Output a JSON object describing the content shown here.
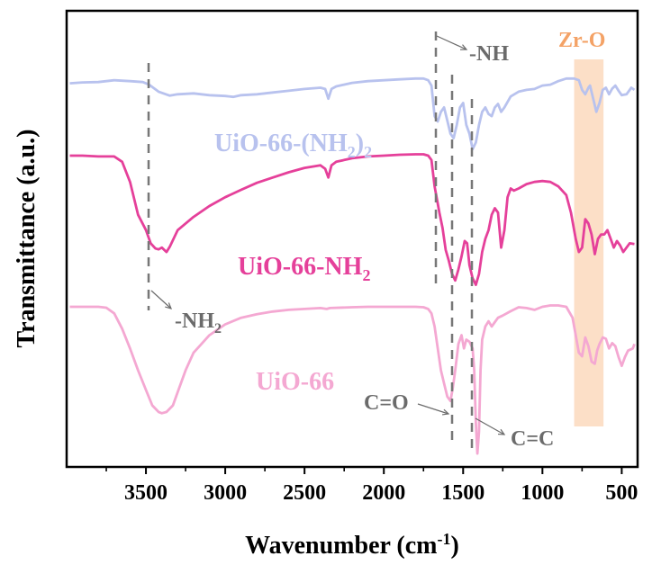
{
  "chart_data": {
    "type": "line",
    "title": "",
    "xlabel": "Wavenumber (cm",
    "xlabel_sup": "-1",
    "xlabel_close": ")",
    "ylabel": "Transmittance (a.u.)",
    "xlim": [
      4000,
      400
    ],
    "x_reversed": true,
    "ylim": [
      0,
      1
    ],
    "ticks": [
      3500,
      3000,
      2500,
      2000,
      1500,
      1000,
      500
    ],
    "tick_labels": [
      "3500",
      "3000",
      "2500",
      "2000",
      "1500",
      "1000",
      "500"
    ],
    "series": [
      {
        "name": "UiO-66-(NH2)2",
        "label_main": "UiO-66-(NH",
        "label_sub": "2",
        "label_close": ")",
        "label_sub2": "2",
        "color": "#b8c2ee",
        "points": [
          [
            3980,
            0.855
          ],
          [
            3900,
            0.857
          ],
          [
            3800,
            0.858
          ],
          [
            3700,
            0.862
          ],
          [
            3600,
            0.86
          ],
          [
            3520,
            0.858
          ],
          [
            3480,
            0.852
          ],
          [
            3420,
            0.836
          ],
          [
            3350,
            0.827
          ],
          [
            3300,
            0.83
          ],
          [
            3200,
            0.832
          ],
          [
            3100,
            0.828
          ],
          [
            3000,
            0.826
          ],
          [
            2950,
            0.824
          ],
          [
            2900,
            0.828
          ],
          [
            2800,
            0.83
          ],
          [
            2700,
            0.834
          ],
          [
            2600,
            0.838
          ],
          [
            2500,
            0.842
          ],
          [
            2400,
            0.845
          ],
          [
            2370,
            0.842
          ],
          [
            2350,
            0.82
          ],
          [
            2330,
            0.842
          ],
          [
            2300,
            0.848
          ],
          [
            2200,
            0.856
          ],
          [
            2100,
            0.86
          ],
          [
            2000,
            0.862
          ],
          [
            1900,
            0.864
          ],
          [
            1800,
            0.866
          ],
          [
            1750,
            0.866
          ],
          [
            1720,
            0.862
          ],
          [
            1700,
            0.85
          ],
          [
            1680,
            0.78
          ],
          [
            1660,
            0.768
          ],
          [
            1640,
            0.79
          ],
          [
            1620,
            0.8
          ],
          [
            1600,
            0.77
          ],
          [
            1580,
            0.74
          ],
          [
            1560,
            0.73
          ],
          [
            1540,
            0.76
          ],
          [
            1520,
            0.8
          ],
          [
            1500,
            0.81
          ],
          [
            1480,
            0.76
          ],
          [
            1460,
            0.74
          ],
          [
            1440,
            0.705
          ],
          [
            1420,
            0.72
          ],
          [
            1400,
            0.76
          ],
          [
            1380,
            0.79
          ],
          [
            1360,
            0.8
          ],
          [
            1340,
            0.785
          ],
          [
            1320,
            0.78
          ],
          [
            1300,
            0.8
          ],
          [
            1280,
            0.808
          ],
          [
            1260,
            0.79
          ],
          [
            1240,
            0.8
          ],
          [
            1200,
            0.825
          ],
          [
            1150,
            0.836
          ],
          [
            1100,
            0.84
          ],
          [
            1050,
            0.842
          ],
          [
            1000,
            0.85
          ],
          [
            950,
            0.852
          ],
          [
            900,
            0.86
          ],
          [
            850,
            0.866
          ],
          [
            800,
            0.866
          ],
          [
            770,
            0.862
          ],
          [
            750,
            0.84
          ],
          [
            730,
            0.83
          ],
          [
            710,
            0.845
          ],
          [
            700,
            0.85
          ],
          [
            680,
            0.82
          ],
          [
            660,
            0.79
          ],
          [
            640,
            0.81
          ],
          [
            620,
            0.84
          ],
          [
            600,
            0.845
          ],
          [
            580,
            0.83
          ],
          [
            560,
            0.843
          ],
          [
            540,
            0.85
          ],
          [
            520,
            0.838
          ],
          [
            500,
            0.828
          ],
          [
            470,
            0.83
          ],
          [
            440,
            0.845
          ],
          [
            420,
            0.84
          ]
        ]
      },
      {
        "name": "UiO-66-NH2",
        "label_main": "UiO-66-NH",
        "label_sub": "2",
        "label_close": "",
        "label_sub2": "",
        "color": "#e5409a",
        "points": [
          [
            3980,
            0.69
          ],
          [
            3900,
            0.69
          ],
          [
            3800,
            0.688
          ],
          [
            3700,
            0.688
          ],
          [
            3650,
            0.676
          ],
          [
            3600,
            0.63
          ],
          [
            3550,
            0.555
          ],
          [
            3500,
            0.52
          ],
          [
            3470,
            0.49
          ],
          [
            3440,
            0.478
          ],
          [
            3420,
            0.476
          ],
          [
            3400,
            0.48
          ],
          [
            3370,
            0.47
          ],
          [
            3350,
            0.482
          ],
          [
            3300,
            0.52
          ],
          [
            3200,
            0.55
          ],
          [
            3100,
            0.575
          ],
          [
            3000,
            0.595
          ],
          [
            2900,
            0.612
          ],
          [
            2800,
            0.628
          ],
          [
            2700,
            0.64
          ],
          [
            2600,
            0.652
          ],
          [
            2500,
            0.662
          ],
          [
            2400,
            0.668
          ],
          [
            2370,
            0.66
          ],
          [
            2350,
            0.64
          ],
          [
            2330,
            0.668
          ],
          [
            2300,
            0.676
          ],
          [
            2200,
            0.684
          ],
          [
            2100,
            0.688
          ],
          [
            2000,
            0.69
          ],
          [
            1900,
            0.692
          ],
          [
            1800,
            0.693
          ],
          [
            1750,
            0.693
          ],
          [
            1720,
            0.69
          ],
          [
            1700,
            0.68
          ],
          [
            1680,
            0.62
          ],
          [
            1650,
            0.56
          ],
          [
            1630,
            0.525
          ],
          [
            1610,
            0.475
          ],
          [
            1590,
            0.45
          ],
          [
            1570,
            0.42
          ],
          [
            1550,
            0.405
          ],
          [
            1530,
            0.43
          ],
          [
            1510,
            0.46
          ],
          [
            1490,
            0.495
          ],
          [
            1475,
            0.49
          ],
          [
            1460,
            0.44
          ],
          [
            1440,
            0.41
          ],
          [
            1420,
            0.395
          ],
          [
            1400,
            0.42
          ],
          [
            1380,
            0.47
          ],
          [
            1360,
            0.5
          ],
          [
            1340,
            0.52
          ],
          [
            1320,
            0.555
          ],
          [
            1300,
            0.57
          ],
          [
            1280,
            0.56
          ],
          [
            1260,
            0.48
          ],
          [
            1240,
            0.52
          ],
          [
            1220,
            0.595
          ],
          [
            1200,
            0.615
          ],
          [
            1180,
            0.61
          ],
          [
            1150,
            0.615
          ],
          [
            1100,
            0.625
          ],
          [
            1050,
            0.63
          ],
          [
            1000,
            0.632
          ],
          [
            950,
            0.63
          ],
          [
            900,
            0.62
          ],
          [
            850,
            0.6
          ],
          [
            820,
            0.56
          ],
          [
            790,
            0.5
          ],
          [
            770,
            0.47
          ],
          [
            750,
            0.48
          ],
          [
            730,
            0.545
          ],
          [
            710,
            0.535
          ],
          [
            690,
            0.51
          ],
          [
            670,
            0.465
          ],
          [
            650,
            0.5
          ],
          [
            630,
            0.51
          ],
          [
            610,
            0.51
          ],
          [
            590,
            0.52
          ],
          [
            570,
            0.5
          ],
          [
            550,
            0.48
          ],
          [
            530,
            0.495
          ],
          [
            510,
            0.485
          ],
          [
            490,
            0.47
          ],
          [
            470,
            0.48
          ],
          [
            450,
            0.49
          ],
          [
            420,
            0.488
          ]
        ]
      },
      {
        "name": "UiO-66",
        "label_main": "UiO-66",
        "label_sub": "",
        "label_close": "",
        "label_sub2": "",
        "color": "#f4a8d2",
        "points": [
          [
            3980,
            0.345
          ],
          [
            3900,
            0.345
          ],
          [
            3800,
            0.345
          ],
          [
            3750,
            0.343
          ],
          [
            3700,
            0.33
          ],
          [
            3650,
            0.295
          ],
          [
            3600,
            0.25
          ],
          [
            3550,
            0.2
          ],
          [
            3500,
            0.155
          ],
          [
            3460,
            0.12
          ],
          [
            3420,
            0.105
          ],
          [
            3400,
            0.102
          ],
          [
            3370,
            0.105
          ],
          [
            3330,
            0.12
          ],
          [
            3300,
            0.15
          ],
          [
            3250,
            0.2
          ],
          [
            3200,
            0.24
          ],
          [
            3100,
            0.28
          ],
          [
            3000,
            0.305
          ],
          [
            2900,
            0.32
          ],
          [
            2800,
            0.328
          ],
          [
            2700,
            0.334
          ],
          [
            2600,
            0.338
          ],
          [
            2500,
            0.34
          ],
          [
            2400,
            0.342
          ],
          [
            2360,
            0.34
          ],
          [
            2340,
            0.342
          ],
          [
            2200,
            0.344
          ],
          [
            2100,
            0.345
          ],
          [
            2000,
            0.345
          ],
          [
            1900,
            0.345
          ],
          [
            1800,
            0.345
          ],
          [
            1750,
            0.344
          ],
          [
            1720,
            0.34
          ],
          [
            1700,
            0.33
          ],
          [
            1680,
            0.3
          ],
          [
            1660,
            0.25
          ],
          [
            1640,
            0.2
          ],
          [
            1620,
            0.17
          ],
          [
            1600,
            0.14
          ],
          [
            1580,
            0.13
          ],
          [
            1565,
            0.16
          ],
          [
            1550,
            0.2
          ],
          [
            1530,
            0.26
          ],
          [
            1510,
            0.28
          ],
          [
            1495,
            0.25
          ],
          [
            1480,
            0.27
          ],
          [
            1460,
            0.265
          ],
          [
            1440,
            0.25
          ],
          [
            1430,
            0.2
          ],
          [
            1420,
            0.08
          ],
          [
            1410,
            0.01
          ],
          [
            1400,
            0.06
          ],
          [
            1390,
            0.2
          ],
          [
            1380,
            0.27
          ],
          [
            1360,
            0.3
          ],
          [
            1340,
            0.312
          ],
          [
            1320,
            0.3
          ],
          [
            1300,
            0.31
          ],
          [
            1280,
            0.32
          ],
          [
            1250,
            0.325
          ],
          [
            1200,
            0.335
          ],
          [
            1150,
            0.344
          ],
          [
            1100,
            0.342
          ],
          [
            1050,
            0.338
          ],
          [
            1000,
            0.345
          ],
          [
            950,
            0.348
          ],
          [
            900,
            0.348
          ],
          [
            850,
            0.345
          ],
          [
            810,
            0.32
          ],
          [
            790,
            0.28
          ],
          [
            770,
            0.24
          ],
          [
            750,
            0.232
          ],
          [
            730,
            0.275
          ],
          [
            710,
            0.255
          ],
          [
            690,
            0.22
          ],
          [
            670,
            0.215
          ],
          [
            655,
            0.245
          ],
          [
            640,
            0.26
          ],
          [
            620,
            0.275
          ],
          [
            600,
            0.272
          ],
          [
            580,
            0.25
          ],
          [
            560,
            0.262
          ],
          [
            540,
            0.255
          ],
          [
            520,
            0.23
          ],
          [
            500,
            0.21
          ],
          [
            480,
            0.23
          ],
          [
            460,
            0.245
          ],
          [
            430,
            0.25
          ],
          [
            420,
            0.26
          ]
        ]
      }
    ],
    "annotations": {
      "amino_top": "-NH",
      "amino_bottom_main": "-NH",
      "amino_bottom_sub": "2",
      "carbonyl": "C=O",
      "alkene": "C=C",
      "zr_o": "Zr-O"
    },
    "colors": {
      "axis": "#000000",
      "annotation_text": "#6b6b6b",
      "dashed_line": "#777777",
      "band_fill": "#fbd9bd",
      "zr_o_label": "#f4a266"
    }
  }
}
